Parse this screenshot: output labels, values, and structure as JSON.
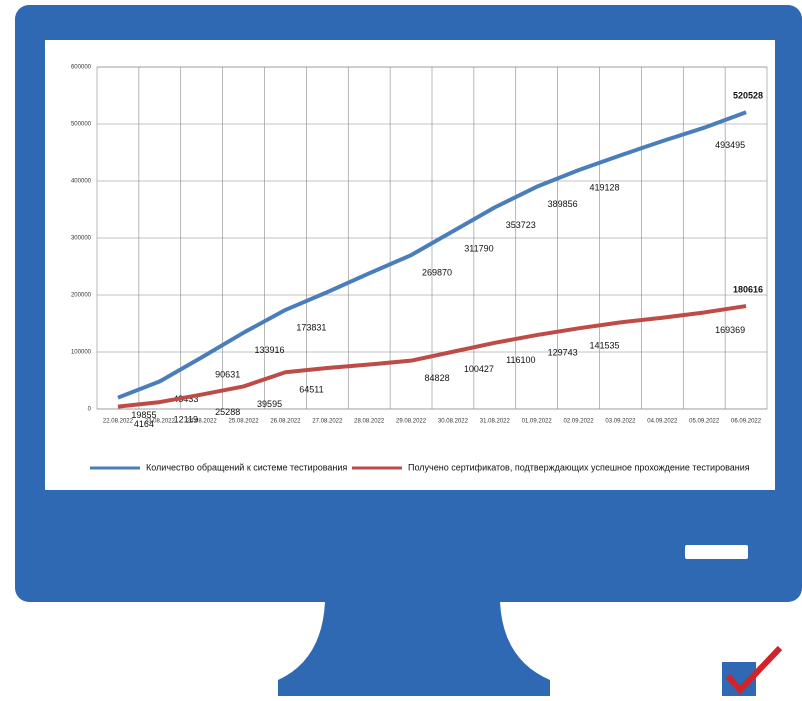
{
  "chart_data": {
    "type": "line",
    "categories": [
      "22.08.2022",
      "23.08.2022",
      "24.08.2022",
      "25.08.2022",
      "26.08.2022",
      "27.08.2022",
      "28.08.2022",
      "29.08.2022",
      "30.08.2022",
      "31.08.2022",
      "01.09.2022",
      "02.09.2022",
      "03.09.2022",
      "04.09.2022",
      "05.09.2022",
      "06.09.2022"
    ],
    "series": [
      {
        "name": "Количество обращений к системе тестирования",
        "color": "#4a7ebb",
        "values": [
          19855,
          48433,
          90631,
          133916,
          173831,
          205000,
          238000,
          269870,
          311790,
          353723,
          389856,
          419128,
          445000,
          470000,
          493495,
          520528
        ],
        "value_labels": [
          "19855",
          "48433",
          "90631",
          "133916",
          "173831",
          null,
          null,
          "269870",
          "311790",
          "353723",
          "389856",
          "419128",
          null,
          null,
          "493495",
          "520528"
        ]
      },
      {
        "name": "Получено сертификатов, подтверждающих успешное прохождение тестирования",
        "color": "#be4b48",
        "values": [
          4164,
          12119,
          25288,
          39595,
          64511,
          72000,
          78000,
          84828,
          100427,
          116100,
          129743,
          141535,
          152000,
          160000,
          169369,
          180616
        ],
        "value_labels": [
          "4164",
          "12119",
          "25288",
          "39595",
          "64511",
          null,
          null,
          "84828",
          "100427",
          "116100",
          "129743",
          "141535",
          null,
          null,
          "169369",
          "180616"
        ]
      }
    ],
    "ylim": [
      0,
      600000
    ],
    "yticks": [
      0,
      100000,
      200000,
      300000,
      400000,
      500000,
      600000
    ],
    "grid": true,
    "legend": "bottom"
  }
}
